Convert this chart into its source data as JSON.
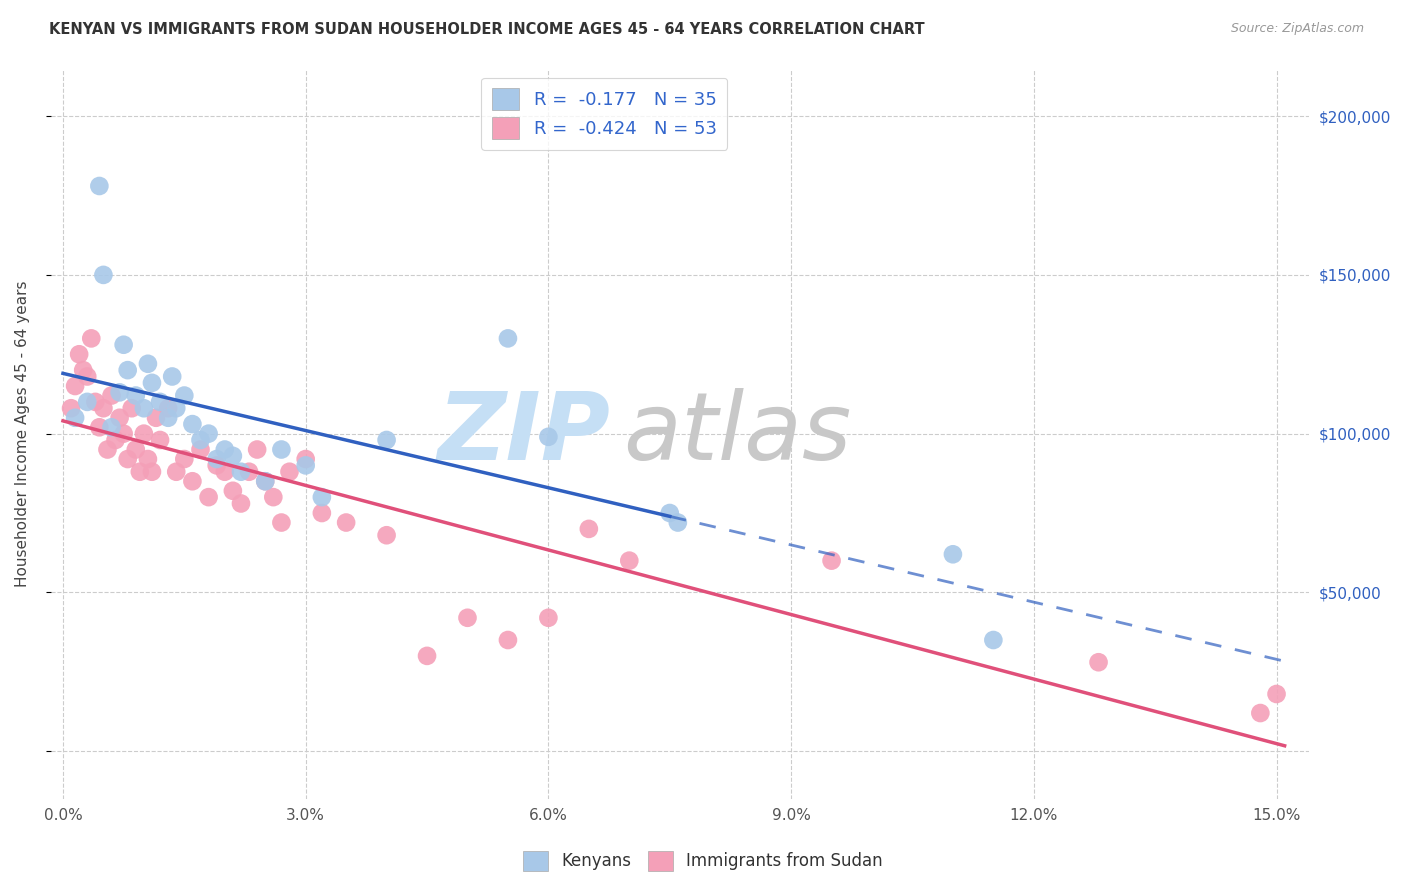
{
  "title": "KENYAN VS IMMIGRANTS FROM SUDAN HOUSEHOLDER INCOME AGES 45 - 64 YEARS CORRELATION CHART",
  "source": "Source: ZipAtlas.com",
  "ylabel": "Householder Income Ages 45 - 64 years",
  "kenyan_R": -0.177,
  "kenyan_N": 35,
  "sudan_R": -0.424,
  "sudan_N": 53,
  "kenyan_color": "#a8c8e8",
  "sudan_color": "#f4a0b8",
  "kenyan_line_color": "#3060c0",
  "sudan_line_color": "#e0507a",
  "legend_text_color": "#3366cc",
  "background_color": "#ffffff",
  "grid_color": "#cccccc",
  "kenyan_x": [
    0.15,
    0.3,
    0.45,
    0.5,
    0.6,
    0.7,
    0.75,
    0.8,
    0.9,
    1.0,
    1.05,
    1.1,
    1.2,
    1.3,
    1.35,
    1.4,
    1.5,
    1.6,
    1.7,
    1.8,
    1.9,
    2.0,
    2.1,
    2.2,
    2.5,
    2.7,
    3.0,
    3.2,
    4.0,
    5.5,
    6.0,
    7.5,
    7.6,
    11.0,
    11.5
  ],
  "kenyan_y": [
    105000,
    110000,
    178000,
    150000,
    102000,
    113000,
    128000,
    120000,
    112000,
    108000,
    122000,
    116000,
    110000,
    105000,
    118000,
    108000,
    112000,
    103000,
    98000,
    100000,
    92000,
    95000,
    93000,
    88000,
    85000,
    95000,
    90000,
    80000,
    98000,
    130000,
    99000,
    75000,
    72000,
    62000,
    35000
  ],
  "sudan_x": [
    0.1,
    0.15,
    0.2,
    0.25,
    0.3,
    0.35,
    0.4,
    0.45,
    0.5,
    0.55,
    0.6,
    0.65,
    0.7,
    0.75,
    0.8,
    0.85,
    0.9,
    0.95,
    1.0,
    1.05,
    1.1,
    1.15,
    1.2,
    1.3,
    1.4,
    1.5,
    1.6,
    1.7,
    1.8,
    1.9,
    2.0,
    2.1,
    2.2,
    2.3,
    2.4,
    2.5,
    2.6,
    2.7,
    2.8,
    3.0,
    3.2,
    3.5,
    4.0,
    4.5,
    5.0,
    5.5,
    6.0,
    6.5,
    7.0,
    9.5,
    12.8,
    14.8,
    15.0
  ],
  "sudan_y": [
    108000,
    115000,
    125000,
    120000,
    118000,
    130000,
    110000,
    102000,
    108000,
    95000,
    112000,
    98000,
    105000,
    100000,
    92000,
    108000,
    95000,
    88000,
    100000,
    92000,
    88000,
    105000,
    98000,
    108000,
    88000,
    92000,
    85000,
    95000,
    80000,
    90000,
    88000,
    82000,
    78000,
    88000,
    95000,
    85000,
    80000,
    72000,
    88000,
    92000,
    75000,
    72000,
    68000,
    30000,
    42000,
    35000,
    42000,
    70000,
    60000,
    60000,
    28000,
    12000,
    18000
  ],
  "xmin": -0.15,
  "xmax": 15.4,
  "ymin": -15000,
  "ymax": 215000,
  "kenyan_line_x_solid_end": 7.5,
  "sudan_line_x_end": 15.1,
  "watermark_zip_color": "#c5dff5",
  "watermark_atlas_color": "#c8c8c8"
}
